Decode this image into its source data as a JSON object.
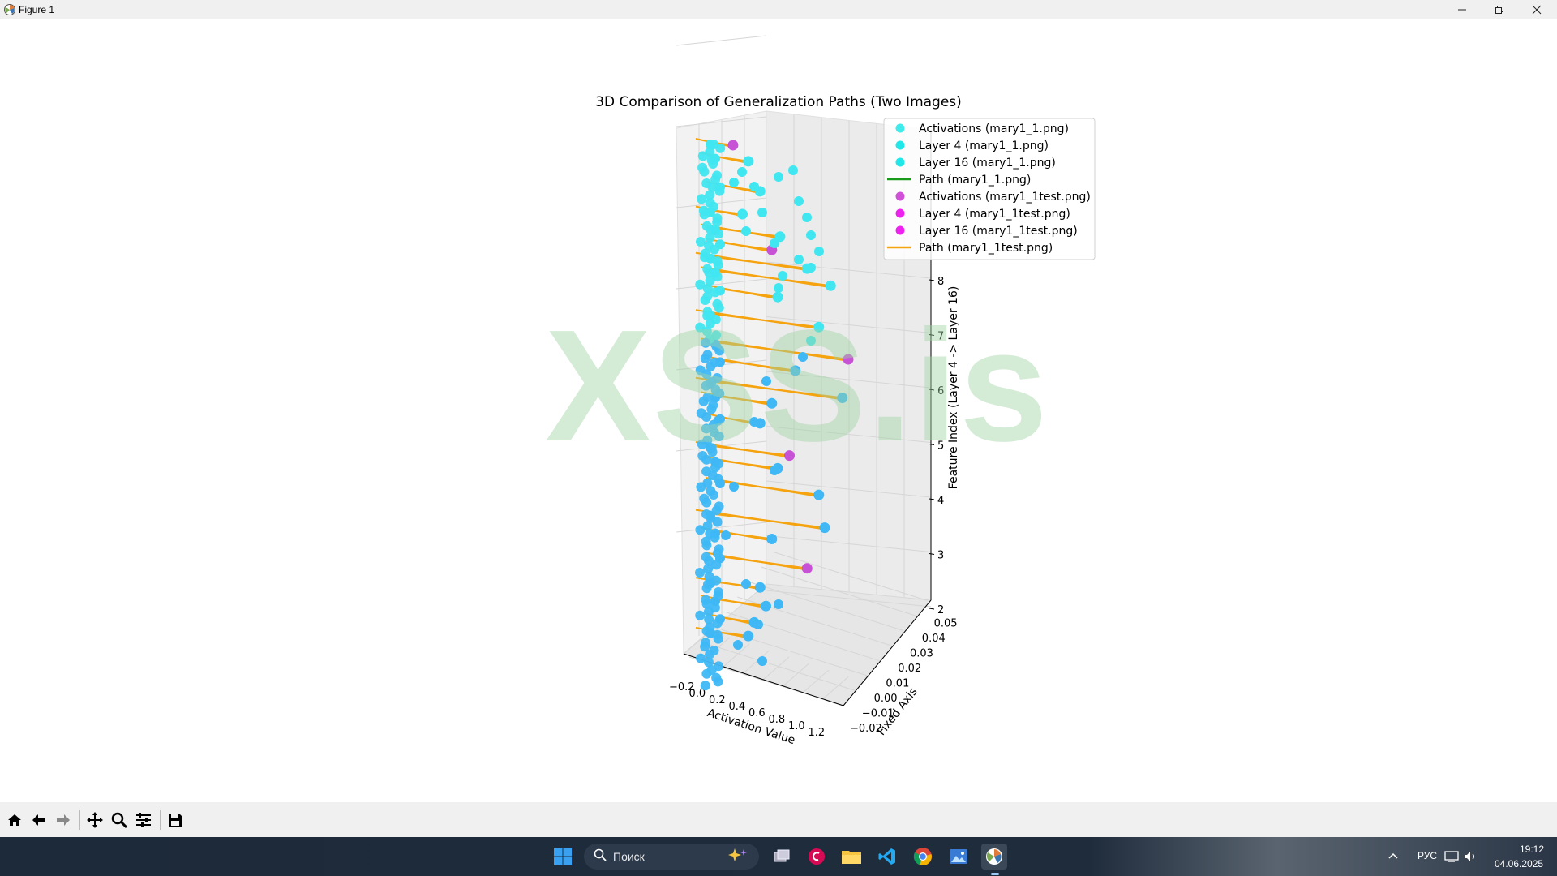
{
  "window": {
    "title": "Figure 1",
    "controls": [
      "minimize",
      "restore",
      "close"
    ]
  },
  "chart_data": {
    "type": "scatter",
    "projection": "3d",
    "title": "3D Comparison of Generalization Paths (Two Images)",
    "xlabel": "Activation Value",
    "ylabel": "Fixed Axis",
    "zlabel": "Feature Index (Layer 4 -> Layer 16)",
    "xlim": [
      -0.2,
      1.3
    ],
    "ylim": [
      -0.02,
      0.055
    ],
    "zlim": [
      1.8,
      8.2
    ],
    "xticks": [
      "−0.2",
      "0.0",
      "0.2",
      "0.4",
      "0.6",
      "0.8",
      "1.0",
      "1.2"
    ],
    "yticks": [
      "−0.02",
      "−0.01",
      "0.00",
      "0.01",
      "0.02",
      "0.03",
      "0.04",
      "0.05"
    ],
    "zticks": [
      "2",
      "3",
      "4",
      "5",
      "6",
      "7",
      "8"
    ],
    "grid": true,
    "legend_position": "top-right",
    "legend": [
      {
        "label": "Activations (mary1_1.png)",
        "kind": "marker",
        "color": "#40ebeb"
      },
      {
        "label": "Layer 4 (mary1_1.png)",
        "kind": "marker",
        "color": "#20e8e8"
      },
      {
        "label": "Layer 16 (mary1_1.png)",
        "kind": "marker",
        "color": "#20e8e8"
      },
      {
        "label": "Path (mary1_1.png)",
        "kind": "line",
        "color": "#1a9a1a"
      },
      {
        "label": "Activations (mary1_1test.png)",
        "kind": "marker",
        "color": "#d050d8"
      },
      {
        "label": "Layer 4 (mary1_1test.png)",
        "kind": "marker",
        "color": "#ee22ee"
      },
      {
        "label": "Layer 16 (mary1_1test.png)",
        "kind": "marker",
        "color": "#ee22ee"
      },
      {
        "label": "Path (mary1_1test.png)",
        "kind": "line",
        "color": "#f5a30e"
      }
    ],
    "series": [
      {
        "name": "Path (mary1_1test.png)",
        "values": [
          [
            0.22,
            0.0,
            8.15
          ],
          [
            0.35,
            0.0,
            7.95
          ],
          [
            0.45,
            0.0,
            7.55
          ],
          [
            0.3,
            0.0,
            7.2
          ],
          [
            0.62,
            0.0,
            6.95
          ],
          [
            0.55,
            0.0,
            6.75
          ],
          [
            0.85,
            0.0,
            6.55
          ],
          [
            1.05,
            0.0,
            6.35
          ],
          [
            0.6,
            0.0,
            6.1
          ],
          [
            0.95,
            0.0,
            5.75
          ],
          [
            1.2,
            0.0,
            5.35
          ],
          [
            0.75,
            0.0,
            5.1
          ],
          [
            1.15,
            0.0,
            4.8
          ],
          [
            0.55,
            0.0,
            4.6
          ],
          [
            0.45,
            0.0,
            4.3
          ],
          [
            0.7,
            0.0,
            3.9
          ],
          [
            0.6,
            0.0,
            3.7
          ],
          [
            0.95,
            0.0,
            3.4
          ],
          [
            1.0,
            0.0,
            2.95
          ],
          [
            0.55,
            0.0,
            2.7
          ],
          [
            0.85,
            0.0,
            2.35
          ],
          [
            0.45,
            0.0,
            2.0
          ],
          [
            0.5,
            0.0,
            1.75
          ],
          [
            0.4,
            0.0,
            1.5
          ],
          [
            0.35,
            0.0,
            1.3
          ]
        ]
      }
    ]
  },
  "watermark": "XSS.is",
  "toolbar": {
    "buttons": [
      "home-icon",
      "back-arrow-icon",
      "forward-arrow-icon",
      "pan-icon",
      "zoom-icon",
      "configure-subplots-icon",
      "save-icon"
    ]
  },
  "taskbar": {
    "search_placeholder": "Поиск",
    "language": "РУС",
    "time": "19:12",
    "date": "04.06.2025",
    "apps": [
      "start-icon",
      "task-view-icon",
      "debian-icon",
      "file-explorer-icon",
      "vscode-icon",
      "chrome-icon",
      "photos-icon",
      "matplotlib-icon"
    ]
  },
  "colors": {
    "cyan": "#40e6f0",
    "blue": "#3fb8f5",
    "magenta": "#ee22ee",
    "orange": "#f5a30e",
    "green": "#1a9a1a"
  }
}
